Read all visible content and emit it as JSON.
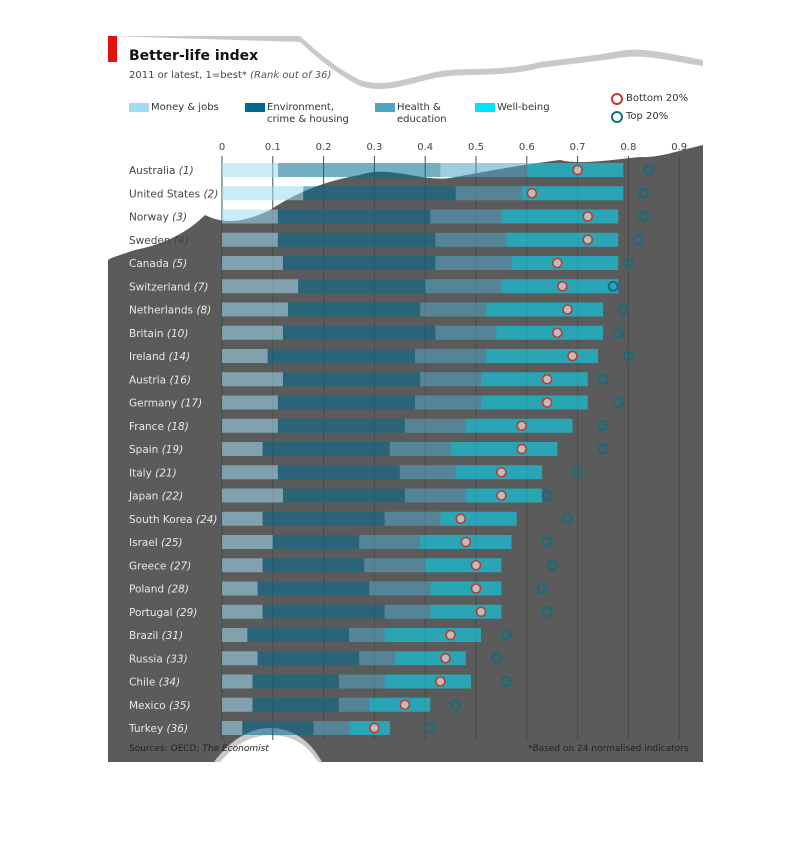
{
  "chart_data": {
    "type": "bar",
    "stacked": true,
    "orientation": "horizontal",
    "title": "Better-life index",
    "subtitle": "2011 or latest, 1=best*",
    "subtitle_note": "(Rank out of 36)",
    "x_ticks": [
      "0",
      "0.1",
      "0.2",
      "0.3",
      "0.4",
      "0.5",
      "0.6",
      "0.7",
      "0.8",
      "0.9"
    ],
    "xlim": [
      0,
      0.9
    ],
    "grid": true,
    "legend_position": "top",
    "series": [
      {
        "name": "Money & jobs",
        "color": "#9fdcf2"
      },
      {
        "name": "Environment, crime & housing",
        "color": "#006b8f"
      },
      {
        "name": "Health & education",
        "color": "#4ea6c4"
      },
      {
        "name": "Well-being",
        "color": "#00e1ff"
      }
    ],
    "markers": [
      {
        "name": "Bottom 20%",
        "color": "#c0392b"
      },
      {
        "name": "Top 20%",
        "color": "#0f6e80"
      }
    ],
    "countries": [
      {
        "country": "Australia",
        "rank": "(1)",
        "values": [
          0.11,
          0.32,
          0.17,
          0.19
        ],
        "bottom20": 0.7,
        "top20": 0.84
      },
      {
        "country": "United States",
        "rank": "(2)",
        "values": [
          0.16,
          0.3,
          0.13,
          0.2
        ],
        "bottom20": 0.61,
        "top20": 0.83
      },
      {
        "country": "Norway",
        "rank": "(3)",
        "values": [
          0.11,
          0.3,
          0.14,
          0.23
        ],
        "bottom20": 0.72,
        "top20": 0.83
      },
      {
        "country": "Sweden",
        "rank": "(4)",
        "values": [
          0.11,
          0.31,
          0.14,
          0.22
        ],
        "bottom20": 0.72,
        "top20": 0.82
      },
      {
        "country": "Canada",
        "rank": "(5)",
        "values": [
          0.12,
          0.3,
          0.15,
          0.21
        ],
        "bottom20": 0.66,
        "top20": 0.8
      },
      {
        "country": "Switzerland",
        "rank": "(7)",
        "values": [
          0.15,
          0.25,
          0.15,
          0.23
        ],
        "bottom20": 0.67,
        "top20": 0.77
      },
      {
        "country": "Netherlands",
        "rank": "(8)",
        "values": [
          0.13,
          0.26,
          0.13,
          0.23
        ],
        "bottom20": 0.68,
        "top20": 0.79
      },
      {
        "country": "Britain",
        "rank": "(10)",
        "values": [
          0.12,
          0.3,
          0.12,
          0.21
        ],
        "bottom20": 0.66,
        "top20": 0.78
      },
      {
        "country": "Ireland",
        "rank": "(14)",
        "values": [
          0.09,
          0.29,
          0.14,
          0.22
        ],
        "bottom20": 0.69,
        "top20": 0.8
      },
      {
        "country": "Austria",
        "rank": "(16)",
        "values": [
          0.12,
          0.27,
          0.12,
          0.21
        ],
        "bottom20": 0.64,
        "top20": 0.75
      },
      {
        "country": "Germany",
        "rank": "(17)",
        "values": [
          0.11,
          0.27,
          0.13,
          0.21
        ],
        "bottom20": 0.64,
        "top20": 0.78
      },
      {
        "country": "France",
        "rank": "(18)",
        "values": [
          0.11,
          0.25,
          0.12,
          0.21
        ],
        "bottom20": 0.59,
        "top20": 0.75
      },
      {
        "country": "Spain",
        "rank": "(19)",
        "values": [
          0.08,
          0.25,
          0.12,
          0.21
        ],
        "bottom20": 0.59,
        "top20": 0.75
      },
      {
        "country": "Italy",
        "rank": "(21)",
        "values": [
          0.11,
          0.24,
          0.11,
          0.17
        ],
        "bottom20": 0.55,
        "top20": 0.7
      },
      {
        "country": "Japan",
        "rank": "(22)",
        "values": [
          0.12,
          0.24,
          0.12,
          0.15
        ],
        "bottom20": 0.55,
        "top20": 0.64
      },
      {
        "country": "South Korea",
        "rank": "(24)",
        "values": [
          0.08,
          0.24,
          0.11,
          0.15
        ],
        "bottom20": 0.47,
        "top20": 0.68
      },
      {
        "country": "Israel",
        "rank": "(25)",
        "values": [
          0.1,
          0.17,
          0.12,
          0.18
        ],
        "bottom20": 0.48,
        "top20": 0.64
      },
      {
        "country": "Greece",
        "rank": "(27)",
        "values": [
          0.08,
          0.2,
          0.12,
          0.15
        ],
        "bottom20": 0.5,
        "top20": 0.65
      },
      {
        "country": "Poland",
        "rank": "(28)",
        "values": [
          0.07,
          0.22,
          0.12,
          0.14
        ],
        "bottom20": 0.5,
        "top20": 0.63
      },
      {
        "country": "Portugal",
        "rank": "(29)",
        "values": [
          0.08,
          0.24,
          0.09,
          0.14
        ],
        "bottom20": 0.51,
        "top20": 0.64
      },
      {
        "country": "Brazil",
        "rank": "(31)",
        "values": [
          0.05,
          0.2,
          0.07,
          0.19
        ],
        "bottom20": 0.45,
        "top20": 0.56
      },
      {
        "country": "Russia",
        "rank": "(33)",
        "values": [
          0.07,
          0.2,
          0.07,
          0.14
        ],
        "bottom20": 0.44,
        "top20": 0.54
      },
      {
        "country": "Chile",
        "rank": "(34)",
        "values": [
          0.06,
          0.17,
          0.09,
          0.17
        ],
        "bottom20": 0.43,
        "top20": 0.56
      },
      {
        "country": "Mexico",
        "rank": "(35)",
        "values": [
          0.06,
          0.17,
          0.06,
          0.12
        ],
        "bottom20": 0.36,
        "top20": 0.46
      },
      {
        "country": "Turkey",
        "rank": "(36)",
        "values": [
          0.04,
          0.14,
          0.07,
          0.08
        ],
        "bottom20": 0.3,
        "top20": 0.41
      }
    ]
  },
  "legend": {
    "money_jobs": "Money & jobs",
    "environment_line1": "Environment,",
    "environment_line2": "crime & housing",
    "health_line1": "Health &",
    "health_line2": "education",
    "wellbeing": "Well-being",
    "bottom20": "Bottom 20%",
    "top20": "Top 20%"
  },
  "footer": {
    "sources_prefix": "Sources: OECD;",
    "sources_publication": "The Economist",
    "footnote": "*Based on 24 normalised indicators"
  }
}
